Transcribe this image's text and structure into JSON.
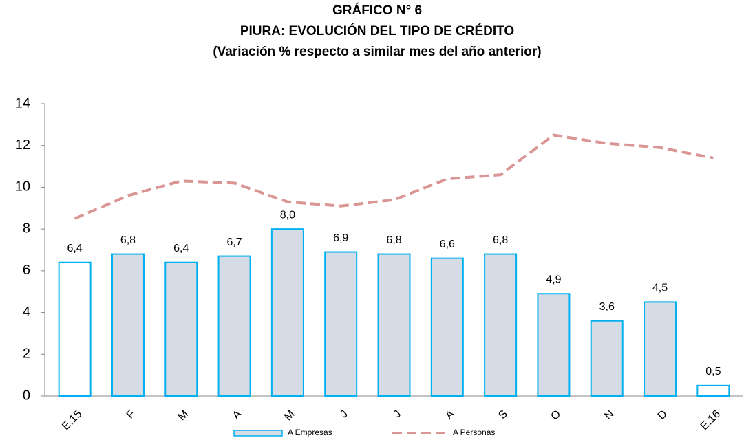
{
  "chart_data": {
    "type": "bar-line",
    "title": [
      "GRÁFICO N° 6",
      "PIURA: EVOLUCIÓN DEL TIPO DE CRÉDITO",
      "(Variación % respecto a similar mes del año anterior)"
    ],
    "categories": [
      "E.15",
      "F",
      "M",
      "A",
      "M",
      "J",
      "J",
      "A",
      "S",
      "O",
      "N",
      "D",
      "E.16"
    ],
    "series": [
      {
        "name": "A Empresas",
        "type": "bar",
        "color": "#00b0f0",
        "colors": [
          "#ffffff",
          "#d6dce5",
          "#d6dce5",
          "#d6dce5",
          "#d6dce5",
          "#d6dce5",
          "#d6dce5",
          "#d6dce5",
          "#d6dce5",
          "#d6dce5",
          "#d6dce5",
          "#d6dce5",
          "#ffffff"
        ],
        "values": [
          6.4,
          6.8,
          6.4,
          6.7,
          8.0,
          6.9,
          6.8,
          6.6,
          6.8,
          4.9,
          3.6,
          4.5,
          0.5
        ],
        "value_labels": [
          "6,4",
          "6,8",
          "6,4",
          "6,7",
          "8,0",
          "6,9",
          "6,8",
          "6,6",
          "6,8",
          "4,9",
          "3,6",
          "4,5",
          "0,5"
        ]
      },
      {
        "name": "A Personas",
        "type": "line",
        "color": "#d99694",
        "values": [
          8.5,
          9.6,
          10.3,
          10.2,
          9.3,
          9.1,
          9.4,
          10.4,
          10.6,
          12.5,
          12.1,
          11.9,
          11.4
        ]
      }
    ],
    "ylim": [
      0,
      14
    ],
    "yticks": [
      0,
      2,
      4,
      6,
      8,
      10,
      12,
      14
    ],
    "grid": false
  }
}
